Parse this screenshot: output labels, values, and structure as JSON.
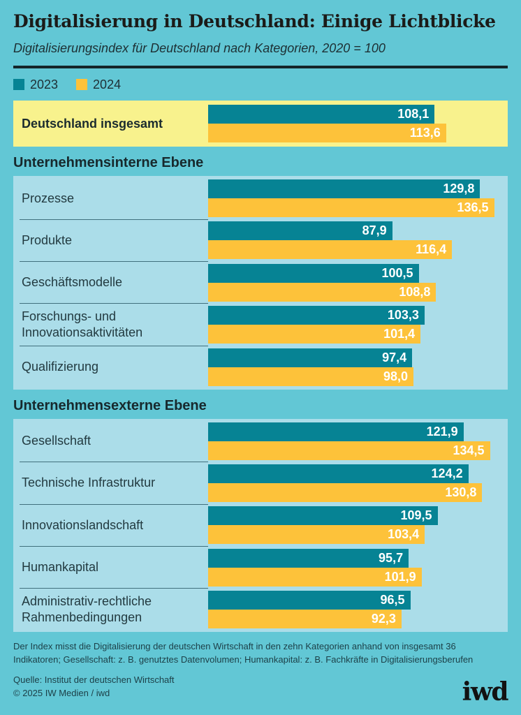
{
  "header": {
    "title": "Digitalisierung in Deutschland: Einige Lichtblicke",
    "subtitle": "Digitalisierungsindex für Deutschland nach Kategorien, 2020 = 100"
  },
  "legend": [
    {
      "label": "2023",
      "color": "#068394"
    },
    {
      "label": "2024",
      "color": "#fdc23a"
    }
  ],
  "colors": {
    "background": "#62c7d5",
    "panel": "#abdde9",
    "highlight_band": "#f8f28d",
    "series_2023": "#068394",
    "series_2024": "#fdc23a",
    "bar_value_text": "#ffffff",
    "divider": "#142529",
    "separator_line": "#40707d"
  },
  "chart_data": {
    "type": "bar",
    "orientation": "horizontal",
    "title": "Digitalisierung in Deutschland: Einige Lichtblicke",
    "subtitle": "Digitalisierungsindex für Deutschland nach Kategorien, 2020 = 100",
    "series_names": [
      "2023",
      "2024"
    ],
    "xlim": [
      0,
      140
    ],
    "grid": false,
    "legend_position": "top-left",
    "total": {
      "label": "Deutschland insgesamt",
      "values": [
        108.1,
        113.6
      ],
      "value_labels": [
        "108,1",
        "113,6"
      ]
    },
    "groups": [
      {
        "title": "Unternehmensinterne Ebene",
        "rows": [
          {
            "label": "Prozesse",
            "values": [
              129.8,
              136.5
            ],
            "value_labels": [
              "129,8",
              "136,5"
            ]
          },
          {
            "label": "Produkte",
            "values": [
              87.9,
              116.4
            ],
            "value_labels": [
              "87,9",
              "116,4"
            ]
          },
          {
            "label": "Geschäftsmodelle",
            "values": [
              100.5,
              108.8
            ],
            "value_labels": [
              "100,5",
              "108,8"
            ]
          },
          {
            "label": "Forschungs- und Innovationsaktivitäten",
            "values": [
              103.3,
              101.4
            ],
            "value_labels": [
              "103,3",
              "101,4"
            ]
          },
          {
            "label": "Qualifizierung",
            "values": [
              97.4,
              98.0
            ],
            "value_labels": [
              "97,4",
              "98,0"
            ]
          }
        ]
      },
      {
        "title": "Unternehmensexterne Ebene",
        "rows": [
          {
            "label": "Gesellschaft",
            "values": [
              121.9,
              134.5
            ],
            "value_labels": [
              "121,9",
              "134,5"
            ]
          },
          {
            "label": "Technische Infrastruktur",
            "values": [
              124.2,
              130.8
            ],
            "value_labels": [
              "124,2",
              "130,8"
            ]
          },
          {
            "label": "Innovationslandschaft",
            "values": [
              109.5,
              103.4
            ],
            "value_labels": [
              "109,5",
              "103,4"
            ]
          },
          {
            "label": "Humankapital",
            "values": [
              95.7,
              101.9
            ],
            "value_labels": [
              "95,7",
              "101,9"
            ]
          },
          {
            "label": "Administrativ-rechtliche Rahmenbedingungen",
            "values": [
              96.5,
              92.3
            ],
            "value_labels": [
              "96,5",
              "92,3"
            ]
          }
        ]
      }
    ]
  },
  "footer": {
    "note": "Der Index misst die Digitalisierung der deutschen Wirtschaft in den zehn Kategorien anhand von insgesamt 36 Indikatoren; Gesellschaft: z. B. genutztes Datenvolumen; Humankapital: z. B. Fachkräfte in Digitalisierungsberufen",
    "source": "Quelle: Institut der deutschen Wirtschaft",
    "copyright": "© 2025 IW Medien / iwd",
    "logo": "iwd"
  }
}
